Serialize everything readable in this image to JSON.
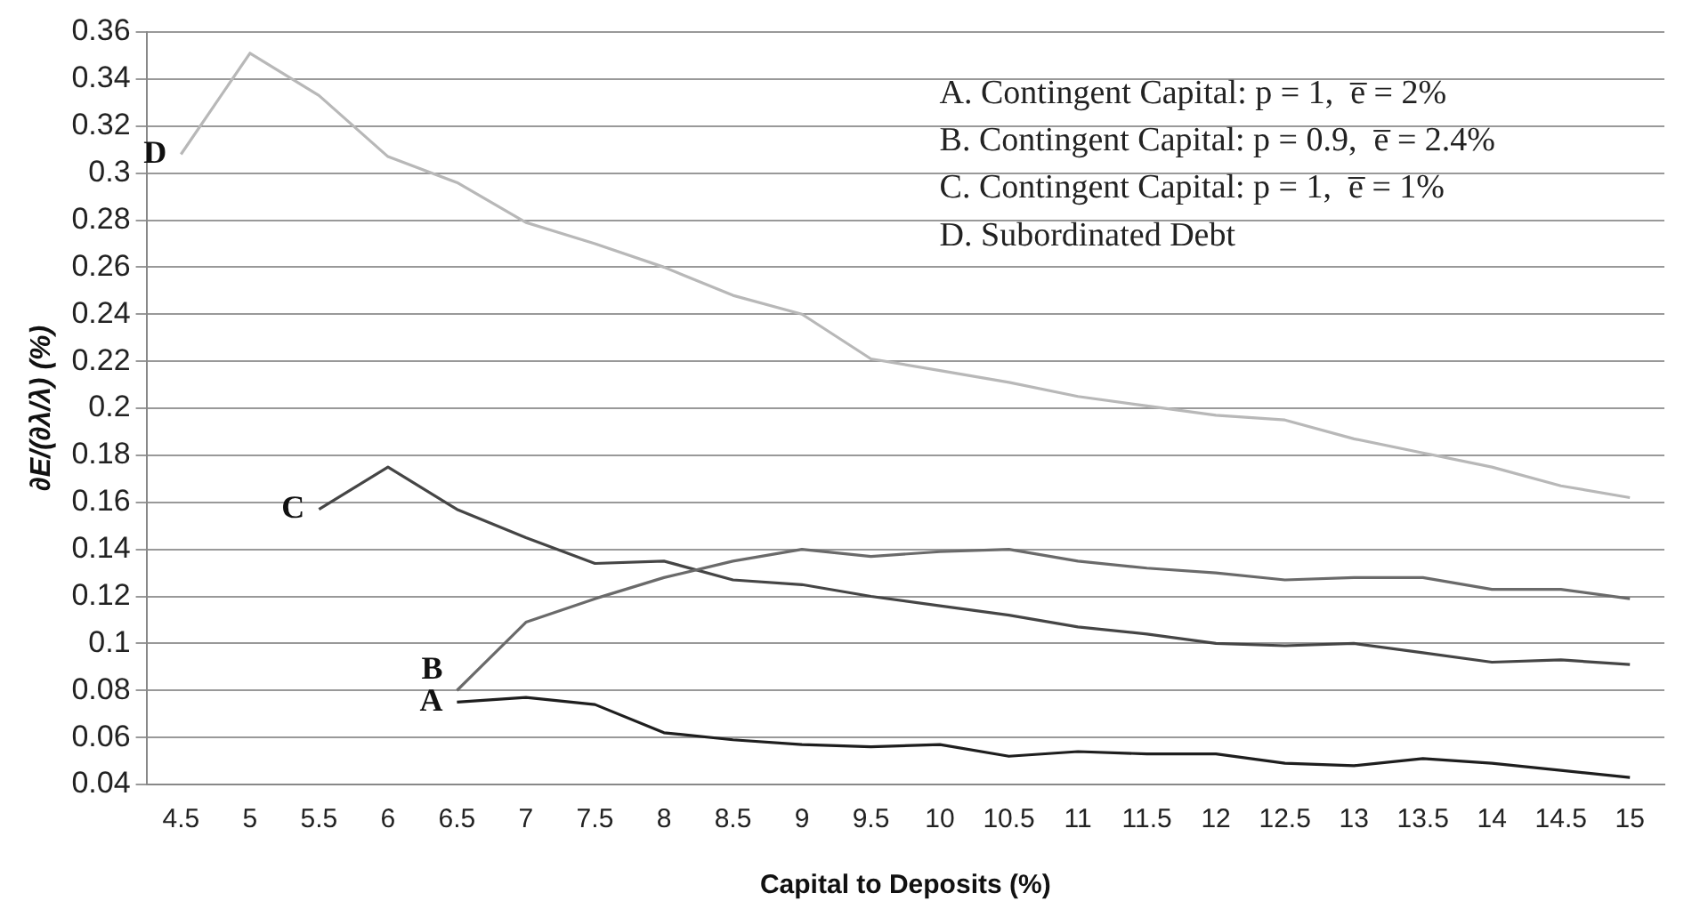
{
  "chart_data": {
    "type": "line",
    "xlabel": "Capital to Deposits (%)",
    "ylabel": "∂E/(∂λ/λ) (%)",
    "categories": [
      "4.5",
      "5",
      "5.5",
      "6",
      "6.5",
      "7",
      "7.5",
      "8",
      "8.5",
      "9",
      "9.5",
      "10",
      "10.5",
      "11",
      "11.5",
      "12",
      "12.5",
      "13",
      "13.5",
      "14",
      "14.5",
      "15"
    ],
    "series": [
      {
        "name": "A",
        "color": "#1e1e1e",
        "values": [
          null,
          null,
          null,
          null,
          0.075,
          0.077,
          0.074,
          0.062,
          0.059,
          0.057,
          0.056,
          0.057,
          0.052,
          0.054,
          0.053,
          0.053,
          0.049,
          0.048,
          0.051,
          0.049,
          0.046,
          0.043
        ]
      },
      {
        "name": "B",
        "color": "#6a6a6a",
        "values": [
          null,
          null,
          null,
          null,
          0.08,
          0.109,
          0.119,
          0.128,
          0.135,
          0.14,
          0.137,
          0.139,
          0.14,
          0.135,
          0.132,
          0.13,
          0.127,
          0.128,
          0.128,
          0.123,
          0.123,
          0.119
        ]
      },
      {
        "name": "C",
        "color": "#454545",
        "values": [
          null,
          null,
          0.157,
          0.175,
          0.157,
          0.145,
          0.134,
          0.135,
          0.127,
          0.125,
          0.12,
          0.116,
          0.112,
          0.107,
          0.104,
          0.1,
          0.099,
          0.1,
          0.096,
          0.092,
          0.093,
          0.091
        ]
      },
      {
        "name": "D",
        "color": "#b8b8b8",
        "values": [
          0.308,
          0.351,
          0.333,
          0.307,
          0.296,
          0.279,
          0.27,
          0.26,
          0.248,
          0.24,
          0.221,
          0.216,
          0.211,
          0.205,
          0.201,
          0.197,
          0.195,
          0.187,
          0.181,
          0.175,
          0.167,
          0.162
        ]
      }
    ],
    "ylim": [
      0.04,
      0.36
    ],
    "yticks": [
      0.04,
      0.06,
      0.08,
      0.1,
      0.12,
      0.14,
      0.16,
      0.18,
      0.2,
      0.22,
      0.24,
      0.26,
      0.28,
      0.3,
      0.32,
      0.34,
      0.36
    ],
    "grid": "y",
    "marker": "none",
    "line_style": "solid",
    "annotations": [
      "A. Contingent Capital: p = 1,  e̅ = 2%",
      "B. Contingent Capital: p = 0.9,  e̅ = 2.4%",
      "C. Contingent Capital: p = 1,  e̅ = 1%",
      "D. Subordinated Debt"
    ]
  }
}
